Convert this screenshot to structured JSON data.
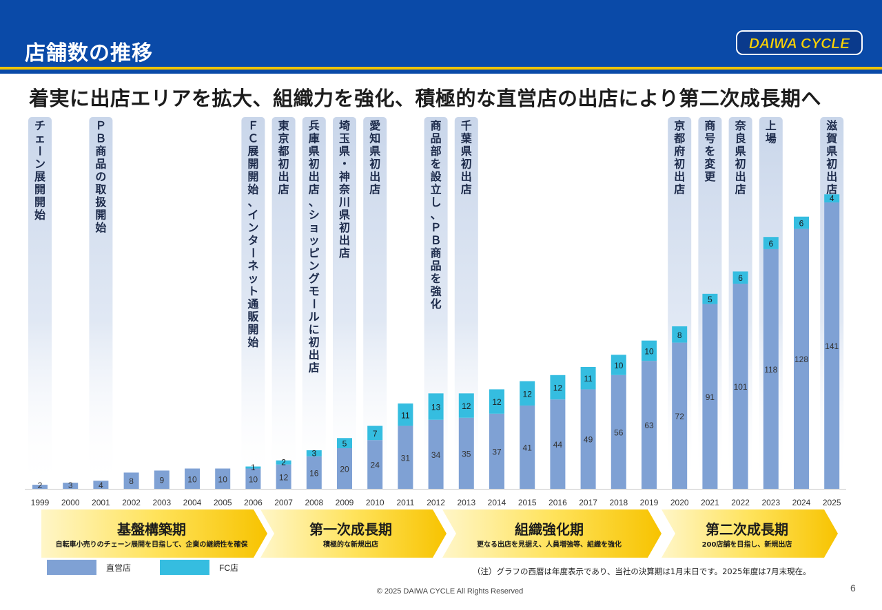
{
  "header": {
    "title": "店舗数の推移",
    "logo_text": "DAIWA CYCLE"
  },
  "headline": "着実に出店エリアを拡大、組織力を強化、積極的な直営店の出店により第二次成長期へ",
  "chart_data": {
    "type": "bar",
    "stacked": true,
    "categories": [
      "1999",
      "2000",
      "2001",
      "2002",
      "2003",
      "2004",
      "2005",
      "2006",
      "2007",
      "2008",
      "2009",
      "2010",
      "2011",
      "2012",
      "2013",
      "2014",
      "2015",
      "2016",
      "2017",
      "2018",
      "2019",
      "2020",
      "2021",
      "2022",
      "2023",
      "2024",
      "2025"
    ],
    "series": [
      {
        "name": "直営店",
        "color": "#7fa1d4",
        "values": [
          2,
          3,
          4,
          8,
          9,
          10,
          10,
          10,
          12,
          16,
          20,
          24,
          31,
          34,
          35,
          37,
          41,
          44,
          49,
          56,
          63,
          72,
          91,
          101,
          118,
          128,
          141
        ]
      },
      {
        "name": "FC店",
        "color": "#35bde0",
        "values": [
          0,
          0,
          0,
          0,
          0,
          0,
          0,
          1,
          2,
          3,
          5,
          7,
          11,
          13,
          12,
          12,
          12,
          12,
          11,
          10,
          10,
          8,
          5,
          6,
          6,
          6,
          4
        ]
      }
    ],
    "annotations": [
      {
        "year": "1999",
        "text": "チェーン展開開始"
      },
      {
        "year": "2001",
        "text": "ＰＢ商品の取扱開始"
      },
      {
        "year": "2006",
        "text": "ＦＣ展開開始、インターネット通販開始"
      },
      {
        "year": "2007",
        "text": "東京都初出店"
      },
      {
        "year": "2008",
        "text": "兵庫県初出店、ショッピングモールに初出店"
      },
      {
        "year": "2009",
        "text": "埼玉県・神奈川県初出店"
      },
      {
        "year": "2010",
        "text": "愛知県初出店"
      },
      {
        "year": "2012",
        "text": "商品部を設立し、ＰＢ商品を強化"
      },
      {
        "year": "2013",
        "text": "千葉県初出店"
      },
      {
        "year": "2020",
        "text": "京都府初出店"
      },
      {
        "year": "2021",
        "text": "商号を変更"
      },
      {
        "year": "2022",
        "text": "奈良県初出店"
      },
      {
        "year": "2023",
        "text": "上場"
      },
      {
        "year": "2025",
        "text": "滋賀県初出店"
      }
    ],
    "phases": [
      {
        "name": "基盤構築期",
        "desc": "自転車小売りのチェーン展開を目指して、企業の継続性を確保"
      },
      {
        "name": "第一次成長期",
        "desc": "積極的な新規出店"
      },
      {
        "name": "組織強化期",
        "desc": "更なる出店を見据え、人員増強等、組織を強化"
      },
      {
        "name": "第二次成長期",
        "desc": "200店舗を目指し、新規出店"
      }
    ],
    "legend": [
      "直営店",
      "FC店"
    ],
    "grid": false,
    "legend_position": "bottom-left"
  },
  "footer": {
    "note": "（注）グラフの西暦は年度表示であり、当社の決算期は1月末日です。2025年度は7月末現在。",
    "copyright": "© 2025 DAIWA CYCLE All Rights Reserved",
    "page": "6"
  }
}
